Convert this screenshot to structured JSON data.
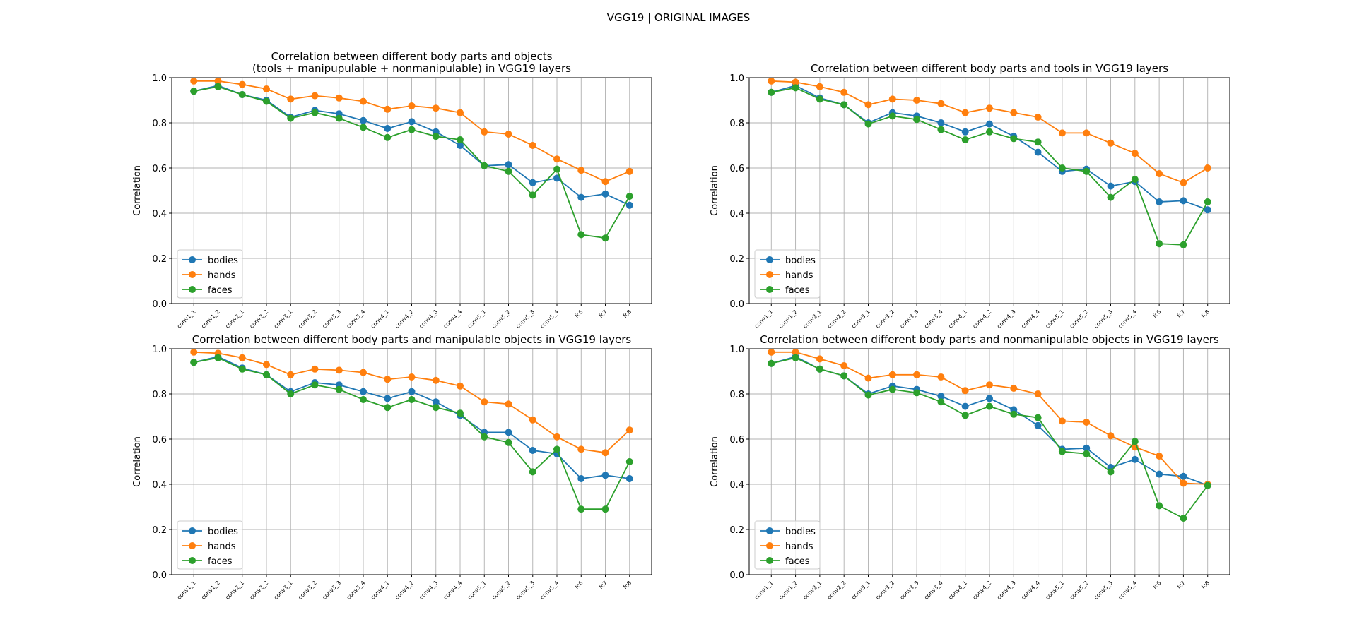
{
  "figure": {
    "suptitle": "VGG19 | ORIGINAL IMAGES"
  },
  "colors": {
    "bodies": "#1f77b4",
    "hands": "#ff7f0e",
    "faces": "#2ca02c",
    "grid": "#b0b0b0"
  },
  "chart_data": [
    {
      "type": "line",
      "title": [
        "Correlation between different body parts and objects",
        "(tools + manipupulable + nonmanipulable) in VGG19 layers"
      ],
      "xlabel": "",
      "ylabel": "Correlation",
      "ylim": [
        0,
        1
      ],
      "yticks": [
        "0.0",
        "0.2",
        "0.4",
        "0.6",
        "0.8",
        "1.0"
      ],
      "grid": true,
      "legend": "lower-left",
      "categories": [
        "conv1_1",
        "conv1_2",
        "conv2_1",
        "conv2_2",
        "conv3_1",
        "conv3_2",
        "conv3_3",
        "conv3_4",
        "conv4_1",
        "conv4_2",
        "conv4_3",
        "conv4_4",
        "conv5_1",
        "conv5_2",
        "conv5_3",
        "conv5_4",
        "fc6",
        "fc7",
        "fc8"
      ],
      "series": [
        {
          "name": "bodies",
          "values": [
            0.94,
            0.965,
            0.925,
            0.9,
            0.825,
            0.855,
            0.84,
            0.81,
            0.775,
            0.805,
            0.76,
            0.7,
            0.61,
            0.615,
            0.535,
            0.555,
            0.47,
            0.485,
            0.435
          ]
        },
        {
          "name": "hands",
          "values": [
            0.985,
            0.985,
            0.97,
            0.95,
            0.905,
            0.92,
            0.91,
            0.895,
            0.86,
            0.875,
            0.865,
            0.845,
            0.76,
            0.75,
            0.7,
            0.64,
            0.59,
            0.54,
            0.585
          ]
        },
        {
          "name": "faces",
          "values": [
            0.94,
            0.96,
            0.925,
            0.895,
            0.82,
            0.845,
            0.82,
            0.78,
            0.735,
            0.77,
            0.74,
            0.725,
            0.61,
            0.585,
            0.48,
            0.595,
            0.305,
            0.29,
            0.475
          ]
        }
      ]
    },
    {
      "type": "line",
      "title": [
        "Correlation between different body parts and tools in VGG19 layers"
      ],
      "xlabel": "",
      "ylabel": "Correlation",
      "ylim": [
        0,
        1
      ],
      "yticks": [
        "0.0",
        "0.2",
        "0.4",
        "0.6",
        "0.8",
        "1.0"
      ],
      "grid": true,
      "legend": "lower-left",
      "categories": [
        "conv1_1",
        "conv1_2",
        "conv2_1",
        "conv2_2",
        "conv3_1",
        "conv3_2",
        "conv3_3",
        "conv3_4",
        "conv4_1",
        "conv4_2",
        "conv4_3",
        "conv4_4",
        "conv5_1",
        "conv5_2",
        "conv5_3",
        "conv5_4",
        "fc6",
        "fc7",
        "fc8"
      ],
      "series": [
        {
          "name": "bodies",
          "values": [
            0.935,
            0.965,
            0.91,
            0.88,
            0.8,
            0.845,
            0.83,
            0.8,
            0.76,
            0.795,
            0.74,
            0.67,
            0.585,
            0.595,
            0.52,
            0.54,
            0.45,
            0.455,
            0.415
          ]
        },
        {
          "name": "hands",
          "values": [
            0.985,
            0.98,
            0.96,
            0.935,
            0.88,
            0.905,
            0.9,
            0.885,
            0.845,
            0.865,
            0.845,
            0.825,
            0.755,
            0.755,
            0.71,
            0.665,
            0.575,
            0.535,
            0.6
          ]
        },
        {
          "name": "faces",
          "values": [
            0.935,
            0.955,
            0.905,
            0.88,
            0.795,
            0.83,
            0.815,
            0.77,
            0.725,
            0.76,
            0.73,
            0.715,
            0.6,
            0.585,
            0.47,
            0.55,
            0.265,
            0.26,
            0.45
          ]
        }
      ]
    },
    {
      "type": "line",
      "title": [
        "Correlation between different body parts and manipulable objects in VGG19 layers"
      ],
      "xlabel": "",
      "ylabel": "Correlation",
      "ylim": [
        0,
        1
      ],
      "yticks": [
        "0.0",
        "0.2",
        "0.4",
        "0.6",
        "0.8",
        "1.0"
      ],
      "grid": true,
      "legend": "lower-left",
      "categories": [
        "conv1_1",
        "conv1_2",
        "conv2_1",
        "conv2_2",
        "conv3_1",
        "conv3_2",
        "conv3_3",
        "conv3_4",
        "conv4_1",
        "conv4_2",
        "conv4_3",
        "conv4_4",
        "conv5_1",
        "conv5_2",
        "conv5_3",
        "conv5_4",
        "fc6",
        "fc7",
        "fc8"
      ],
      "series": [
        {
          "name": "bodies",
          "values": [
            0.94,
            0.965,
            0.915,
            0.885,
            0.81,
            0.85,
            0.84,
            0.81,
            0.78,
            0.81,
            0.765,
            0.705,
            0.63,
            0.63,
            0.55,
            0.535,
            0.425,
            0.44,
            0.425
          ]
        },
        {
          "name": "hands",
          "values": [
            0.985,
            0.98,
            0.96,
            0.93,
            0.885,
            0.91,
            0.905,
            0.895,
            0.865,
            0.875,
            0.86,
            0.835,
            0.765,
            0.755,
            0.685,
            0.61,
            0.555,
            0.54,
            0.64
          ]
        },
        {
          "name": "faces",
          "values": [
            0.94,
            0.96,
            0.91,
            0.885,
            0.8,
            0.84,
            0.82,
            0.775,
            0.74,
            0.775,
            0.74,
            0.715,
            0.61,
            0.585,
            0.455,
            0.555,
            0.29,
            0.29,
            0.5
          ]
        }
      ]
    },
    {
      "type": "line",
      "title": [
        "Correlation between different body parts and nonmanipulable objects in VGG19 layers"
      ],
      "xlabel": "",
      "ylabel": "Correlation",
      "ylim": [
        0,
        1
      ],
      "yticks": [
        "0.0",
        "0.2",
        "0.4",
        "0.6",
        "0.8",
        "1.0"
      ],
      "grid": true,
      "legend": "lower-left",
      "categories": [
        "conv1_1",
        "conv1_2",
        "conv2_1",
        "conv2_2",
        "conv3_1",
        "conv3_2",
        "conv3_3",
        "conv3_4",
        "conv4_1",
        "conv4_2",
        "conv4_3",
        "conv4_4",
        "conv5_1",
        "conv5_2",
        "conv5_3",
        "conv5_4",
        "fc6",
        "fc7",
        "fc8"
      ],
      "series": [
        {
          "name": "bodies",
          "values": [
            0.935,
            0.965,
            0.91,
            0.88,
            0.8,
            0.835,
            0.82,
            0.79,
            0.745,
            0.78,
            0.73,
            0.66,
            0.555,
            0.56,
            0.475,
            0.51,
            0.445,
            0.435,
            0.395
          ]
        },
        {
          "name": "hands",
          "values": [
            0.985,
            0.985,
            0.955,
            0.925,
            0.87,
            0.885,
            0.885,
            0.875,
            0.815,
            0.84,
            0.825,
            0.8,
            0.68,
            0.675,
            0.615,
            0.565,
            0.525,
            0.405,
            0.4
          ]
        },
        {
          "name": "faces",
          "values": [
            0.935,
            0.96,
            0.91,
            0.88,
            0.795,
            0.82,
            0.805,
            0.765,
            0.705,
            0.745,
            0.71,
            0.695,
            0.545,
            0.535,
            0.455,
            0.59,
            0.305,
            0.25,
            0.395
          ]
        }
      ]
    }
  ]
}
